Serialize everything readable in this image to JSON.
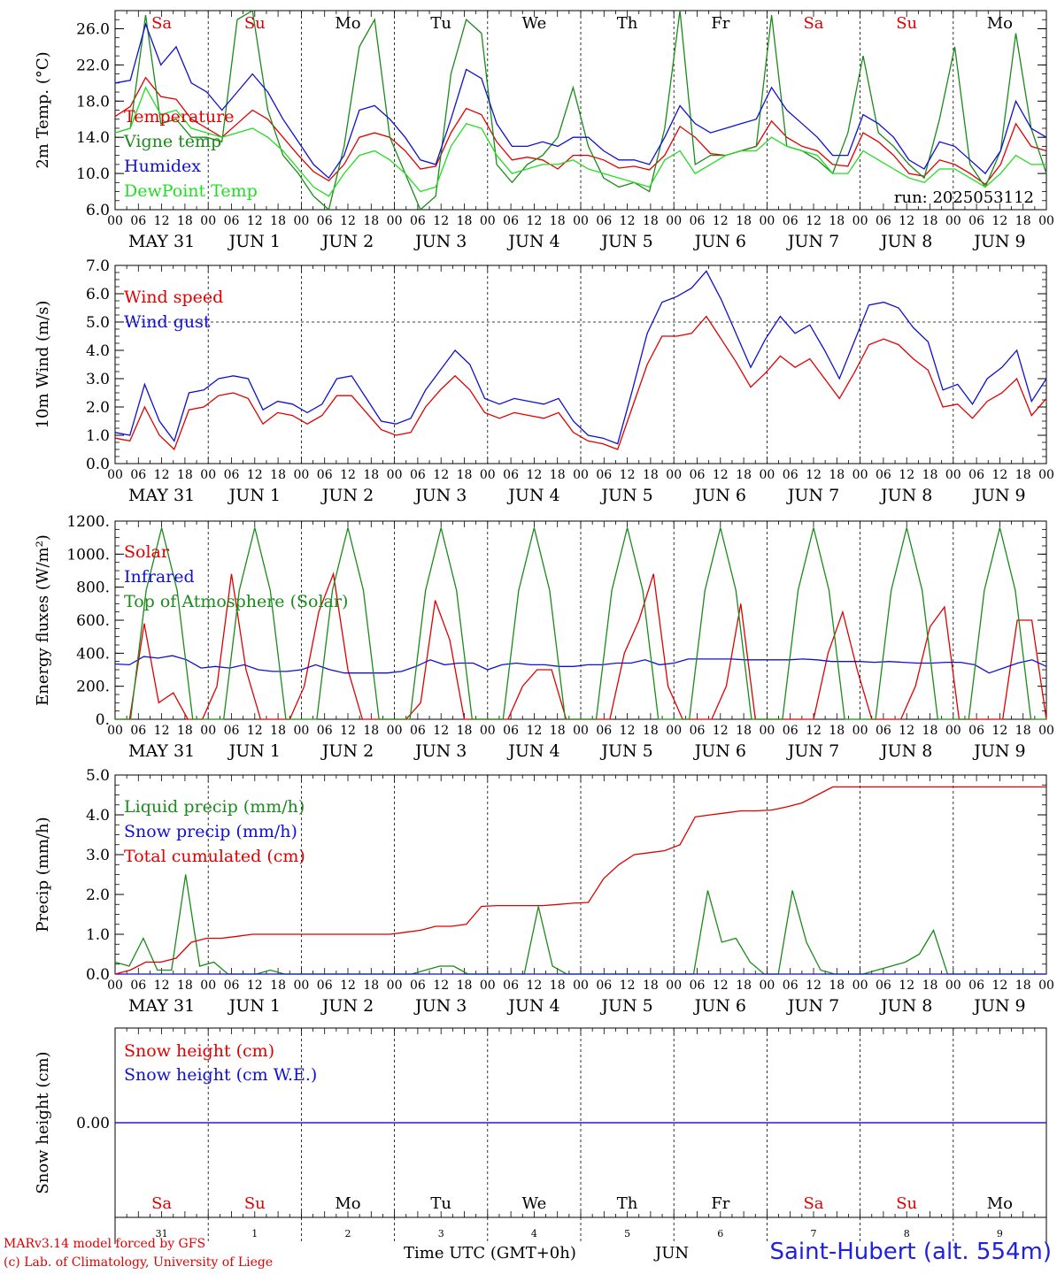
{
  "run_label": "run: 2025053112",
  "days": [
    {
      "dow": "Sa",
      "dow_color": "#e00000",
      "date": "MAY 31",
      "num": "31"
    },
    {
      "dow": "Su",
      "dow_color": "#e00000",
      "date": "JUN  1",
      "num": "1"
    },
    {
      "dow": "Mo",
      "dow_color": "#000000",
      "date": "JUN  2",
      "num": "2"
    },
    {
      "dow": "Tu",
      "dow_color": "#000000",
      "date": "JUN  3",
      "num": "3"
    },
    {
      "dow": "We",
      "dow_color": "#000000",
      "date": "JUN  4",
      "num": "4"
    },
    {
      "dow": "Th",
      "dow_color": "#000000",
      "date": "JUN  5",
      "num": "5"
    },
    {
      "dow": "Fr",
      "dow_color": "#000000",
      "date": "JUN  6",
      "num": "6"
    },
    {
      "dow": "Sa",
      "dow_color": "#e00000",
      "date": "JUN  7",
      "num": "7"
    },
    {
      "dow": "Su",
      "dow_color": "#e00000",
      "date": "JUN  8",
      "num": "8"
    },
    {
      "dow": "Mo",
      "dow_color": "#000000",
      "date": "JUN  9",
      "num": "9"
    }
  ],
  "hour_ticks": [
    "00",
    "06",
    "12",
    "18"
  ],
  "footer": {
    "model": "MARv3.14 model forced by GFS",
    "credit": "(c) Lab. of Climatology, University of Liege",
    "time_label": "Time UTC (GMT+0h)",
    "month_label": "JUN",
    "station": "Saint-Hubert (alt. 554m)"
  },
  "chart_data": [
    {
      "type": "line",
      "panel": "temperature",
      "ylabel": "2m Temp. (°C)",
      "ylim": [
        6,
        28
      ],
      "yticks": [
        "6.0",
        "10.0",
        "14.0",
        "18.0",
        "22.0",
        "26.0"
      ],
      "x_hours_step": 6,
      "series": [
        {
          "name": "Temperature",
          "color": "#e00000",
          "values": [
            16.3,
            17.4,
            20.6,
            18.5,
            18.2,
            16.0,
            15.0,
            14.0,
            15.5,
            17.0,
            16.0,
            14.0,
            12.0,
            10.2,
            9.2,
            11.0,
            14.0,
            14.5,
            14.0,
            12.5,
            10.5,
            10.8,
            14.5,
            17.2,
            16.5,
            13.5,
            11.5,
            11.8,
            11.5,
            10.5,
            12.0,
            12.0,
            11.5,
            10.6,
            10.8,
            10.4,
            12.0,
            15.2,
            14.0,
            12.2,
            12.0,
            12.5,
            13.0,
            15.8,
            14.0,
            13.0,
            12.5,
            11.0,
            10.8,
            14.5,
            13.5,
            12.0,
            10.0,
            9.7,
            11.5,
            11.0,
            10.0,
            8.8,
            11.0,
            15.5,
            13.0,
            12.5
          ]
        },
        {
          "name": "Vigne temp",
          "color": "#1a8a1a",
          "values": [
            14.5,
            15.0,
            27.5,
            15.5,
            16.0,
            14.0,
            14.0,
            13.5,
            27.0,
            28.0,
            17.0,
            12.0,
            10.0,
            7.5,
            6.0,
            13.0,
            24.0,
            27.0,
            14.0,
            10.0,
            6.0,
            7.5,
            21.0,
            27.0,
            25.5,
            11.0,
            9.0,
            11.0,
            12.0,
            14.0,
            19.5,
            13.0,
            9.5,
            8.5,
            9.0,
            8.0,
            15.0,
            28.0,
            11.0,
            12.0,
            12.0,
            12.5,
            13.0,
            27.5,
            13.0,
            12.5,
            11.5,
            10.0,
            14.5,
            23.0,
            14.5,
            13.0,
            11.0,
            9.5,
            16.0,
            24.0,
            11.0,
            8.5,
            12.5,
            25.5,
            15.0,
            10.0
          ]
        },
        {
          "name": "Humidex",
          "color": "#1010d0",
          "values": [
            20.0,
            20.3,
            26.5,
            22.0,
            24.0,
            20.0,
            19.0,
            17.0,
            19.0,
            21.0,
            19.0,
            16.0,
            13.5,
            11.0,
            9.5,
            12.0,
            17.0,
            17.5,
            16.0,
            14.0,
            11.5,
            11.0,
            16.0,
            21.5,
            20.5,
            15.5,
            13.0,
            13.0,
            13.5,
            13.0,
            14.0,
            14.0,
            12.5,
            11.5,
            11.5,
            11.0,
            14.0,
            17.5,
            15.5,
            14.5,
            15.0,
            15.5,
            16.0,
            19.5,
            17.0,
            15.5,
            14.0,
            12.0,
            12.0,
            16.5,
            15.5,
            14.0,
            11.5,
            10.5,
            13.5,
            13.0,
            11.5,
            10.0,
            12.5,
            18.0,
            15.0,
            14.0
          ]
        },
        {
          "name": "DewPoint Temp",
          "color": "#22dd22",
          "values": [
            14.5,
            15.0,
            19.5,
            16.5,
            17.0,
            15.0,
            14.5,
            14.0,
            14.5,
            15.0,
            14.0,
            12.5,
            10.5,
            8.5,
            7.5,
            10.0,
            12.0,
            12.5,
            11.5,
            10.0,
            8.0,
            8.5,
            13.0,
            15.5,
            15.0,
            12.0,
            10.0,
            10.5,
            11.0,
            11.0,
            11.5,
            10.5,
            10.0,
            9.5,
            9.0,
            8.5,
            11.5,
            12.5,
            10.0,
            11.0,
            12.0,
            12.5,
            12.5,
            14.0,
            13.0,
            12.5,
            12.0,
            10.0,
            10.0,
            12.5,
            11.5,
            10.5,
            9.5,
            9.0,
            10.5,
            10.5,
            9.5,
            8.5,
            10.0,
            12.0,
            11.0,
            11.0
          ]
        }
      ]
    },
    {
      "type": "line",
      "panel": "wind",
      "ylabel": "10m Wind (m/s)",
      "ylim": [
        0,
        7
      ],
      "yticks": [
        "0.0",
        "1.0",
        "2.0",
        "3.0",
        "4.0",
        "5.0",
        "6.0",
        "7.0"
      ],
      "x_hours_step": 6,
      "series": [
        {
          "name": "Wind speed",
          "color": "#e00000",
          "values": [
            0.9,
            0.8,
            2.0,
            1.0,
            0.5,
            1.9,
            2.0,
            2.4,
            2.5,
            2.3,
            1.4,
            1.8,
            1.7,
            1.4,
            1.7,
            2.4,
            2.4,
            1.8,
            1.2,
            1.0,
            1.1,
            2.0,
            2.6,
            3.1,
            2.6,
            1.8,
            1.6,
            1.8,
            1.7,
            1.6,
            1.8,
            1.1,
            0.8,
            0.7,
            0.5,
            2.0,
            3.5,
            4.5,
            4.5,
            4.6,
            5.2,
            4.4,
            3.6,
            2.7,
            3.2,
            3.8,
            3.4,
            3.7,
            3.0,
            2.3,
            3.2,
            4.2,
            4.4,
            4.2,
            3.7,
            3.3,
            2.0,
            2.1,
            1.6,
            2.2,
            2.5,
            3.0,
            1.7,
            2.3
          ]
        },
        {
          "name": "Wind gust",
          "color": "#1010d0",
          "values": [
            1.1,
            1.0,
            2.8,
            1.5,
            0.8,
            2.5,
            2.6,
            3.0,
            3.1,
            3.0,
            1.9,
            2.2,
            2.1,
            1.8,
            2.1,
            3.0,
            3.1,
            2.3,
            1.5,
            1.4,
            1.6,
            2.6,
            3.3,
            4.0,
            3.5,
            2.3,
            2.1,
            2.3,
            2.2,
            2.1,
            2.3,
            1.5,
            1.0,
            0.9,
            0.7,
            2.6,
            4.6,
            5.7,
            5.9,
            6.2,
            6.8,
            5.8,
            4.6,
            3.4,
            4.4,
            5.2,
            4.6,
            4.9,
            4.0,
            3.0,
            4.3,
            5.6,
            5.7,
            5.5,
            4.8,
            4.3,
            2.6,
            2.8,
            2.1,
            3.0,
            3.4,
            4.0,
            2.2,
            3.0
          ]
        }
      ]
    },
    {
      "type": "line",
      "panel": "energy",
      "ylabel": "Energy fluxes (W/m²)",
      "ylim": [
        0,
        1200
      ],
      "yticks": [
        "0.",
        "200.",
        "400.",
        "600.",
        "800.",
        "1000.",
        "1200."
      ],
      "x_hours_step": 6,
      "series": [
        {
          "name": "Solar",
          "color": "#e00000",
          "values": [
            0,
            0,
            580,
            100,
            160,
            0,
            0,
            200,
            880,
            300,
            0,
            0,
            0,
            200,
            650,
            880,
            300,
            0,
            0,
            0,
            0,
            100,
            720,
            480,
            0,
            0,
            0,
            0,
            200,
            300,
            300,
            0,
            0,
            0,
            0,
            400,
            600,
            880,
            200,
            0,
            0,
            0,
            200,
            700,
            0,
            0,
            0,
            0,
            0,
            400,
            650,
            300,
            0,
            0,
            0,
            200,
            560,
            680,
            0,
            0,
            0,
            0,
            600,
            600,
            0
          ]
        },
        {
          "name": "Infrared",
          "color": "#1010d0",
          "values": [
            335,
            330,
            380,
            370,
            385,
            360,
            310,
            320,
            310,
            330,
            300,
            290,
            290,
            300,
            330,
            300,
            280,
            280,
            280,
            280,
            290,
            320,
            360,
            330,
            340,
            340,
            300,
            330,
            340,
            330,
            330,
            320,
            320,
            330,
            330,
            340,
            340,
            360,
            330,
            340,
            365,
            365,
            365,
            365,
            360,
            360,
            360,
            360,
            365,
            360,
            350,
            350,
            350,
            345,
            350,
            345,
            340,
            340,
            345,
            345,
            330,
            280,
            310,
            340,
            360,
            320
          ]
        },
        {
          "name": "Top of Atmosphere (Solar)",
          "color": "#1a8a1a",
          "values": [
            0,
            0,
            780,
            1160,
            780,
            0,
            0,
            0,
            780,
            1160,
            780,
            0,
            0,
            0,
            780,
            1160,
            780,
            0,
            0,
            0,
            780,
            1160,
            780,
            0,
            0,
            0,
            780,
            1160,
            780,
            0,
            0,
            0,
            780,
            1160,
            780,
            0,
            0,
            0,
            780,
            1160,
            780,
            0,
            0,
            0,
            780,
            1160,
            780,
            0,
            0,
            0,
            780,
            1160,
            780,
            0,
            0,
            0,
            780,
            1160,
            780,
            0,
            0
          ]
        }
      ]
    },
    {
      "type": "line",
      "panel": "precip",
      "ylabel": "Precip (mm/h)",
      "ylim": [
        0,
        5
      ],
      "yticks": [
        "0.0",
        "1.0",
        "2.0",
        "3.0",
        "4.0",
        "5.0"
      ],
      "x_hours_step": 6,
      "series": [
        {
          "name": "Liquid precip (mm/h)",
          "color": "#1a8a1a",
          "values": [
            0.3,
            0.2,
            0.9,
            0.1,
            0.1,
            2.5,
            0.2,
            0.3,
            0,
            0,
            0,
            0.1,
            0,
            0,
            0,
            0,
            0,
            0,
            0,
            0,
            0,
            0,
            0.1,
            0.2,
            0.2,
            0,
            0,
            0,
            0,
            0,
            1.7,
            0.2,
            0,
            0,
            0,
            0,
            0,
            0,
            0,
            0,
            0,
            0,
            2.1,
            0.8,
            0.9,
            0.3,
            0,
            0,
            2.1,
            0.8,
            0.1,
            0,
            0,
            0,
            0.1,
            0.2,
            0.3,
            0.5,
            1.1,
            0,
            0,
            0,
            0,
            0,
            0,
            0,
            0
          ]
        },
        {
          "name": "Snow precip (mm/h)",
          "color": "#1010d0",
          "values": [
            0,
            0,
            0,
            0,
            0,
            0,
            0,
            0,
            0,
            0,
            0,
            0,
            0,
            0,
            0,
            0,
            0,
            0,
            0,
            0,
            0,
            0,
            0,
            0,
            0,
            0,
            0,
            0,
            0,
            0,
            0,
            0,
            0,
            0,
            0,
            0,
            0,
            0,
            0,
            0,
            0,
            0,
            0,
            0,
            0,
            0,
            0,
            0,
            0,
            0,
            0,
            0,
            0,
            0,
            0,
            0,
            0,
            0,
            0,
            0,
            0,
            0
          ]
        },
        {
          "name": "Total cumulated (cm)",
          "color": "#e00000",
          "values": [
            0.0,
            0.1,
            0.3,
            0.3,
            0.4,
            0.8,
            0.9,
            0.9,
            0.95,
            1.0,
            1.0,
            1.0,
            1.0,
            1.0,
            1.0,
            1.0,
            1.0,
            1.0,
            1.0,
            1.05,
            1.1,
            1.2,
            1.2,
            1.25,
            1.7,
            1.72,
            1.72,
            1.72,
            1.72,
            1.75,
            1.78,
            1.8,
            2.4,
            2.75,
            3.0,
            3.05,
            3.1,
            3.25,
            3.95,
            4.0,
            4.05,
            4.1,
            4.1,
            4.12,
            4.2,
            4.3,
            4.5,
            4.7,
            4.7,
            4.7,
            4.7,
            4.7,
            4.7,
            4.7,
            4.7,
            4.7,
            4.7,
            4.7,
            4.7,
            4.7,
            4.7,
            4.7
          ]
        }
      ]
    },
    {
      "type": "line",
      "panel": "snow",
      "ylabel": "Snow height (cm)",
      "ylim": [
        -1,
        1
      ],
      "yticks": [
        "0.00"
      ],
      "x_hours_step": 6,
      "series": [
        {
          "name": "Snow height (cm)",
          "color": "#e00000",
          "values": [
            0,
            0
          ]
        },
        {
          "name": "Snow height (cm W.E.)",
          "color": "#1010d0",
          "values": [
            0,
            0
          ]
        }
      ]
    }
  ]
}
